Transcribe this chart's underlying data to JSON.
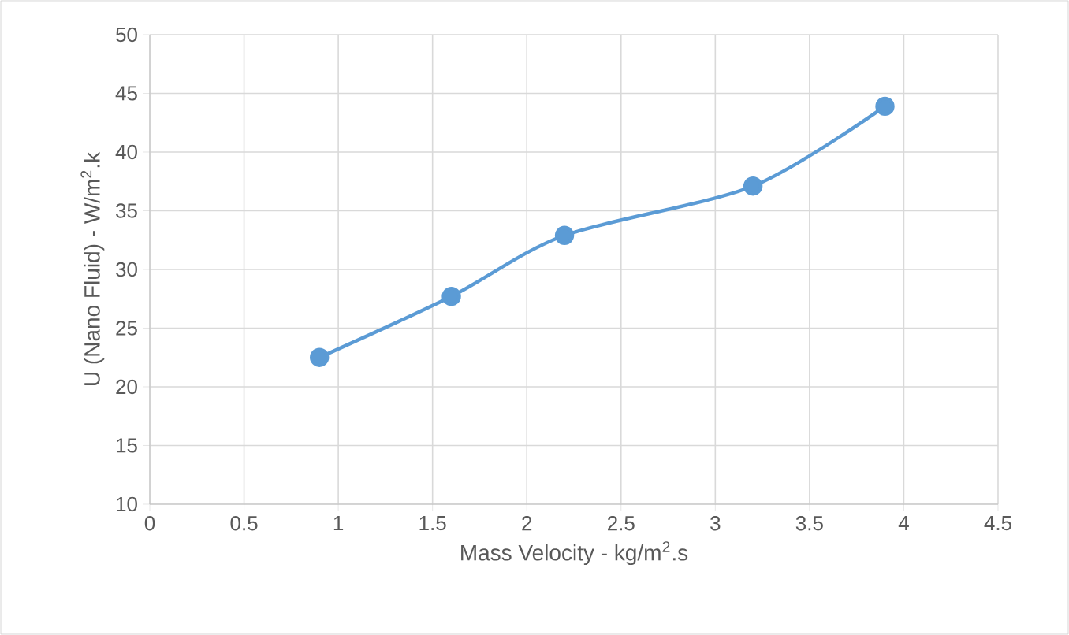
{
  "chart_data": {
    "type": "line",
    "xlabel": "Mass Velocity - kg/m$^{2}$.s",
    "ylabel": "U (Nano Fluid) - W/m$^{2}$.k",
    "x": [
      0.9,
      1.6,
      2.2,
      3.2,
      3.9
    ],
    "series": [
      {
        "color": "#5b9bd5",
        "values": [
          22.5,
          27.7,
          32.9,
          37.1,
          43.9
        ]
      }
    ],
    "xlim": [
      0,
      4.5
    ],
    "xticks": [
      0,
      0.5,
      1,
      1.5,
      2,
      2.5,
      3,
      3.5,
      4,
      4.5
    ],
    "ylim": [
      10,
      50
    ],
    "yticks": [
      10,
      15,
      20,
      25,
      30,
      35,
      40,
      45,
      50
    ],
    "grid": true,
    "marker": "circle",
    "line_style": "solid"
  }
}
